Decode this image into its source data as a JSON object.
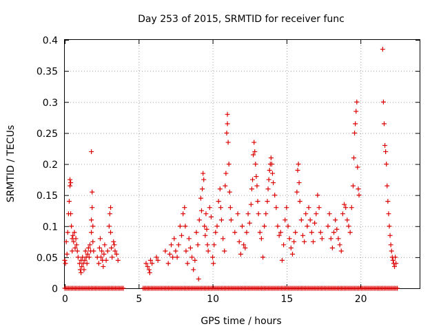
{
  "chart_data": {
    "type": "scatter",
    "title": "Day 253 of 2015, SRMTID for receiver func",
    "xlabel": "GPS time / hours",
    "ylabel": "SRMTID / TECUs",
    "xlim": [
      0,
      24
    ],
    "ylim": [
      0,
      0.4
    ],
    "xticks": [
      0,
      5,
      10,
      15,
      20
    ],
    "yticks": [
      0,
      0.05,
      0.1,
      0.15,
      0.2,
      0.25,
      0.3,
      0.35,
      0.4
    ],
    "ytick_labels": [
      "0",
      "0.05",
      "0.1",
      "0.15",
      "0.2",
      "0.25",
      "0.3",
      "0.35",
      "0.4"
    ],
    "grid": true,
    "marker": "+",
    "color": "#dd0000",
    "series": [
      {
        "points": [
          [
            0.0,
            0.045
          ],
          [
            0.05,
            0.04
          ],
          [
            0.1,
            0.075
          ],
          [
            0.15,
            0.055
          ],
          [
            0.2,
            0.09
          ],
          [
            0.25,
            0.12
          ],
          [
            0.3,
            0.14
          ],
          [
            0.35,
            0.165
          ],
          [
            0.35,
            0.175
          ],
          [
            0.4,
            0.17
          ],
          [
            0.4,
            0.12
          ],
          [
            0.45,
            0.1
          ],
          [
            0.5,
            0.08
          ],
          [
            0.5,
            0.06
          ],
          [
            0.55,
            0.085
          ],
          [
            0.6,
            0.075
          ],
          [
            0.65,
            0.09
          ],
          [
            0.7,
            0.065
          ],
          [
            0.75,
            0.08
          ],
          [
            0.8,
            0.07
          ],
          [
            0.85,
            0.06
          ],
          [
            0.9,
            0.05
          ],
          [
            1.0,
            0.04
          ],
          [
            1.05,
            0.03
          ],
          [
            1.1,
            0.025
          ],
          [
            1.1,
            0.045
          ],
          [
            1.15,
            0.035
          ],
          [
            1.2,
            0.05
          ],
          [
            1.25,
            0.04
          ],
          [
            1.3,
            0.03
          ],
          [
            1.35,
            0.045
          ],
          [
            1.4,
            0.06
          ],
          [
            1.45,
            0.05
          ],
          [
            1.5,
            0.04
          ],
          [
            1.55,
            0.055
          ],
          [
            1.6,
            0.065
          ],
          [
            1.65,
            0.05
          ],
          [
            1.7,
            0.07
          ],
          [
            1.75,
            0.06
          ],
          [
            1.8,
            0.09
          ],
          [
            1.8,
            0.11
          ],
          [
            1.85,
            0.13
          ],
          [
            1.85,
            0.155
          ],
          [
            1.9,
            0.1
          ],
          [
            1.9,
            0.075
          ],
          [
            1.95,
            0.06
          ],
          [
            1.8,
            0.22
          ],
          [
            2.2,
            0.05
          ],
          [
            2.3,
            0.04
          ],
          [
            2.35,
            0.065
          ],
          [
            2.4,
            0.08
          ],
          [
            2.45,
            0.05
          ],
          [
            2.5,
            0.06
          ],
          [
            2.55,
            0.045
          ],
          [
            2.6,
            0.035
          ],
          [
            2.65,
            0.055
          ],
          [
            2.7,
            0.07
          ],
          [
            2.8,
            0.045
          ],
          [
            2.9,
            0.06
          ],
          [
            3.0,
            0.1
          ],
          [
            3.05,
            0.12
          ],
          [
            3.1,
            0.13
          ],
          [
            3.1,
            0.09
          ],
          [
            3.15,
            0.065
          ],
          [
            3.2,
            0.05
          ],
          [
            3.3,
            0.075
          ],
          [
            3.35,
            0.07
          ],
          [
            3.4,
            0.06
          ],
          [
            3.5,
            0.055
          ],
          [
            3.6,
            0.045
          ],
          [
            5.5,
            0.04
          ],
          [
            5.6,
            0.035
          ],
          [
            5.7,
            0.03
          ],
          [
            5.75,
            0.025
          ],
          [
            5.8,
            0.045
          ],
          [
            5.9,
            0.04
          ],
          [
            6.2,
            0.05
          ],
          [
            6.3,
            0.045
          ],
          [
            6.8,
            0.06
          ],
          [
            7.0,
            0.04
          ],
          [
            7.1,
            0.055
          ],
          [
            7.2,
            0.07
          ],
          [
            7.3,
            0.05
          ],
          [
            7.4,
            0.08
          ],
          [
            7.5,
            0.06
          ],
          [
            7.6,
            0.05
          ],
          [
            7.7,
            0.07
          ],
          [
            7.8,
            0.1
          ],
          [
            7.9,
            0.085
          ],
          [
            8.0,
            0.12
          ],
          [
            8.1,
            0.13
          ],
          [
            8.15,
            0.1
          ],
          [
            8.2,
            0.06
          ],
          [
            8.3,
            0.04
          ],
          [
            8.4,
            0.08
          ],
          [
            8.5,
            0.065
          ],
          [
            8.6,
            0.05
          ],
          [
            8.7,
            0.03
          ],
          [
            8.8,
            0.045
          ],
          [
            8.9,
            0.09
          ],
          [
            9.0,
            0.07
          ],
          [
            9.05,
            0.015
          ],
          [
            9.1,
            0.11
          ],
          [
            9.2,
            0.145
          ],
          [
            9.25,
            0.125
          ],
          [
            9.3,
            0.16
          ],
          [
            9.35,
            0.185
          ],
          [
            9.4,
            0.175
          ],
          [
            9.45,
            0.1
          ],
          [
            9.5,
            0.085
          ],
          [
            9.55,
            0.12
          ],
          [
            9.6,
            0.095
          ],
          [
            9.65,
            0.07
          ],
          [
            9.7,
            0.06
          ],
          [
            9.8,
            0.13
          ],
          [
            9.9,
            0.115
          ],
          [
            10.0,
            0.05
          ],
          [
            10.05,
            0.04
          ],
          [
            10.1,
            0.07
          ],
          [
            10.2,
            0.09
          ],
          [
            10.3,
            0.1
          ],
          [
            10.4,
            0.14
          ],
          [
            10.5,
            0.16
          ],
          [
            10.55,
            0.13
          ],
          [
            10.6,
            0.11
          ],
          [
            10.7,
            0.08
          ],
          [
            10.8,
            0.06
          ],
          [
            10.85,
            0.165
          ],
          [
            10.9,
            0.185
          ],
          [
            10.95,
            0.25
          ],
          [
            11.0,
            0.28
          ],
          [
            11.0,
            0.265
          ],
          [
            11.05,
            0.235
          ],
          [
            11.1,
            0.2
          ],
          [
            11.15,
            0.155
          ],
          [
            11.2,
            0.13
          ],
          [
            11.25,
            0.11
          ],
          [
            11.5,
            0.09
          ],
          [
            11.7,
            0.12
          ],
          [
            11.8,
            0.075
          ],
          [
            11.9,
            0.055
          ],
          [
            12.0,
            0.1
          ],
          [
            12.1,
            0.07
          ],
          [
            12.2,
            0.065
          ],
          [
            12.3,
            0.09
          ],
          [
            12.4,
            0.12
          ],
          [
            12.5,
            0.105
          ],
          [
            12.6,
            0.135
          ],
          [
            12.65,
            0.16
          ],
          [
            12.7,
            0.175
          ],
          [
            12.75,
            0.215
          ],
          [
            12.8,
            0.235
          ],
          [
            12.85,
            0.22
          ],
          [
            12.9,
            0.2
          ],
          [
            12.95,
            0.18
          ],
          [
            13.0,
            0.165
          ],
          [
            13.05,
            0.14
          ],
          [
            13.1,
            0.12
          ],
          [
            13.2,
            0.09
          ],
          [
            13.3,
            0.08
          ],
          [
            13.4,
            0.05
          ],
          [
            13.5,
            0.1
          ],
          [
            13.6,
            0.12
          ],
          [
            13.7,
            0.14
          ],
          [
            13.75,
            0.16
          ],
          [
            13.8,
            0.175
          ],
          [
            13.85,
            0.19
          ],
          [
            13.9,
            0.2
          ],
          [
            13.95,
            0.21
          ],
          [
            14.0,
            0.2
          ],
          [
            14.05,
            0.185
          ],
          [
            14.1,
            0.17
          ],
          [
            14.2,
            0.15
          ],
          [
            14.3,
            0.13
          ],
          [
            14.4,
            0.1
          ],
          [
            14.5,
            0.085
          ],
          [
            14.6,
            0.09
          ],
          [
            14.7,
            0.045
          ],
          [
            14.8,
            0.07
          ],
          [
            14.9,
            0.11
          ],
          [
            15.0,
            0.13
          ],
          [
            15.1,
            0.1
          ],
          [
            15.2,
            0.08
          ],
          [
            15.3,
            0.065
          ],
          [
            15.4,
            0.055
          ],
          [
            15.5,
            0.075
          ],
          [
            15.6,
            0.09
          ],
          [
            15.7,
            0.155
          ],
          [
            15.75,
            0.19
          ],
          [
            15.8,
            0.2
          ],
          [
            15.85,
            0.17
          ],
          [
            15.9,
            0.14
          ],
          [
            16.0,
            0.11
          ],
          [
            16.1,
            0.085
          ],
          [
            16.2,
            0.075
          ],
          [
            16.3,
            0.12
          ],
          [
            16.4,
            0.1
          ],
          [
            16.5,
            0.13
          ],
          [
            16.6,
            0.11
          ],
          [
            16.7,
            0.09
          ],
          [
            16.8,
            0.075
          ],
          [
            16.9,
            0.105
          ],
          [
            17.0,
            0.12
          ],
          [
            17.1,
            0.15
          ],
          [
            17.2,
            0.13
          ],
          [
            17.3,
            0.09
          ],
          [
            17.4,
            0.08
          ],
          [
            17.8,
            0.1
          ],
          [
            17.9,
            0.12
          ],
          [
            18.0,
            0.08
          ],
          [
            18.1,
            0.065
          ],
          [
            18.2,
            0.09
          ],
          [
            18.3,
            0.11
          ],
          [
            18.4,
            0.095
          ],
          [
            18.5,
            0.08
          ],
          [
            18.6,
            0.07
          ],
          [
            18.7,
            0.06
          ],
          [
            18.8,
            0.12
          ],
          [
            18.9,
            0.135
          ],
          [
            19.0,
            0.13
          ],
          [
            19.1,
            0.11
          ],
          [
            19.2,
            0.1
          ],
          [
            19.3,
            0.09
          ],
          [
            19.4,
            0.13
          ],
          [
            19.5,
            0.165
          ],
          [
            19.55,
            0.21
          ],
          [
            19.6,
            0.25
          ],
          [
            19.65,
            0.265
          ],
          [
            19.7,
            0.285
          ],
          [
            19.75,
            0.3
          ],
          [
            19.8,
            0.195
          ],
          [
            19.85,
            0.16
          ],
          [
            19.9,
            0.15
          ],
          [
            21.5,
            0.385
          ],
          [
            21.55,
            0.3
          ],
          [
            21.6,
            0.265
          ],
          [
            21.65,
            0.23
          ],
          [
            21.7,
            0.22
          ],
          [
            21.75,
            0.2
          ],
          [
            21.8,
            0.165
          ],
          [
            21.85,
            0.14
          ],
          [
            21.9,
            0.12
          ],
          [
            21.95,
            0.1
          ],
          [
            22.0,
            0.085
          ],
          [
            22.05,
            0.07
          ],
          [
            22.1,
            0.06
          ],
          [
            22.15,
            0.05
          ],
          [
            22.2,
            0.045
          ],
          [
            22.25,
            0.04
          ],
          [
            22.3,
            0.035
          ],
          [
            22.35,
            0.05
          ],
          [
            22.4,
            0.04
          ]
        ]
      },
      {
        "marker_row": "zero",
        "x_ranges": [
          [
            0.0,
            4.0
          ],
          [
            5.3,
            22.5
          ]
        ]
      }
    ]
  }
}
